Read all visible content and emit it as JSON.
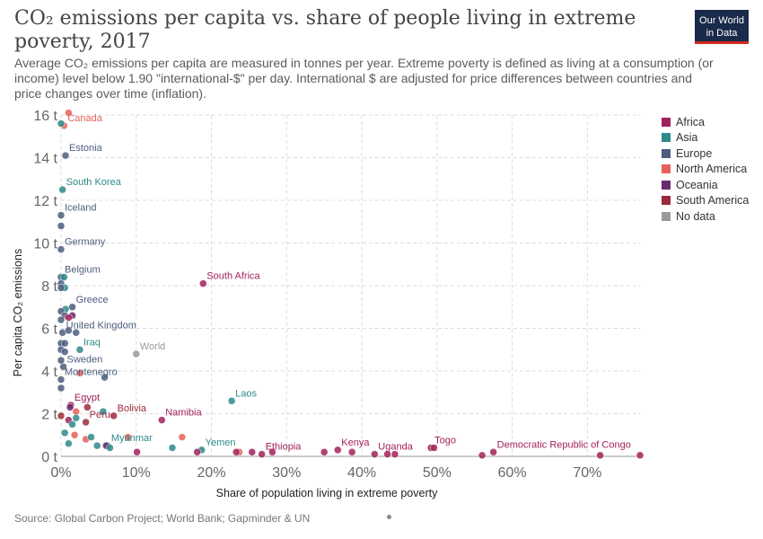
{
  "header": {
    "title": "CO₂ emissions per capita vs. share of people living in extreme poverty, 2017",
    "subtitle": "Average CO₂  emissions per capita are measured in tonnes per year. Extreme poverty is defined as living at a consumption (or income) level below 1.90 \"international-$\" per day. International $ are adjusted for price differences between countries and price changes over time (inflation).",
    "logo_line1": "Our World",
    "logo_line2": "in Data"
  },
  "footer": {
    "source": "Source: Global Carbon Project; World Bank; Gapminder & UN"
  },
  "colors": {
    "Africa": "#a2225b",
    "Asia": "#2e8a8a",
    "Europe": "#4c5d7e",
    "North America": "#e5605a",
    "Oceania": "#6a2a6e",
    "South America": "#9b2a3c",
    "No data": "#9a9a9a"
  },
  "chart_data": {
    "type": "scatter",
    "xlabel": "Share of population living in extreme poverty",
    "ylabel": "Per capita CO₂ emissions",
    "xlim": [
      0,
      77
    ],
    "ylim": [
      0,
      16
    ],
    "x_ticks": [
      "0%",
      "10%",
      "20%",
      "30%",
      "40%",
      "50%",
      "60%",
      "70%"
    ],
    "x_tick_values": [
      0,
      10,
      20,
      30,
      40,
      50,
      60,
      70
    ],
    "y_ticks": [
      "0 t",
      "2 t",
      "4 t",
      "6 t",
      "8 t",
      "10 t",
      "12 t",
      "14 t",
      "16 t"
    ],
    "y_tick_values": [
      0,
      2,
      4,
      6,
      8,
      10,
      12,
      14,
      16
    ],
    "grid": true,
    "legend_position": "right",
    "legend": [
      "Africa",
      "Asia",
      "Europe",
      "North America",
      "Oceania",
      "South America",
      "No data"
    ],
    "points": [
      {
        "label": "Canada",
        "region": "North America",
        "x": 0.4,
        "y": 15.5
      },
      {
        "label": "",
        "region": "North America",
        "x": 1.0,
        "y": 16.1
      },
      {
        "label": "",
        "region": "Asia",
        "x": 0.0,
        "y": 15.6
      },
      {
        "label": "Estonia",
        "region": "Europe",
        "x": 0.6,
        "y": 14.1
      },
      {
        "label": "South Korea",
        "region": "Asia",
        "x": 0.2,
        "y": 12.5
      },
      {
        "label": "Iceland",
        "region": "Europe",
        "x": 0.0,
        "y": 11.3
      },
      {
        "label": "",
        "region": "Europe",
        "x": 0.0,
        "y": 10.8
      },
      {
        "label": "Germany",
        "region": "Europe",
        "x": 0.0,
        "y": 9.7
      },
      {
        "label": "Belgium",
        "region": "Europe",
        "x": 0.0,
        "y": 8.4
      },
      {
        "label": "",
        "region": "Asia",
        "x": 0.4,
        "y": 8.4
      },
      {
        "label": "",
        "region": "Europe",
        "x": 0.0,
        "y": 8.1
      },
      {
        "label": "",
        "region": "Asia",
        "x": 0.5,
        "y": 7.9
      },
      {
        "label": "",
        "region": "Europe",
        "x": 0.0,
        "y": 7.9
      },
      {
        "label": "South Africa",
        "region": "Africa",
        "x": 18.9,
        "y": 8.1
      },
      {
        "label": "Greece",
        "region": "Europe",
        "x": 1.5,
        "y": 7.0
      },
      {
        "label": "",
        "region": "Asia",
        "x": 0.6,
        "y": 6.9
      },
      {
        "label": "",
        "region": "Europe",
        "x": 0.0,
        "y": 6.8
      },
      {
        "label": "",
        "region": "Europe",
        "x": 0.5,
        "y": 6.6
      },
      {
        "label": "",
        "region": "Oceania",
        "x": 1.5,
        "y": 6.6
      },
      {
        "label": "",
        "region": "Africa",
        "x": 1.0,
        "y": 6.5
      },
      {
        "label": "",
        "region": "Europe",
        "x": 0.0,
        "y": 6.4
      },
      {
        "label": "United Kingdom",
        "region": "Europe",
        "x": 0.2,
        "y": 5.8
      },
      {
        "label": "",
        "region": "Europe",
        "x": 1.0,
        "y": 5.9
      },
      {
        "label": "",
        "region": "Europe",
        "x": 2.0,
        "y": 5.8
      },
      {
        "label": "",
        "region": "Europe",
        "x": 0.0,
        "y": 5.3
      },
      {
        "label": "",
        "region": "Europe",
        "x": 0.5,
        "y": 5.3
      },
      {
        "label": "Iraq",
        "region": "Asia",
        "x": 2.5,
        "y": 5.0
      },
      {
        "label": "",
        "region": "Europe",
        "x": 0.0,
        "y": 5.0
      },
      {
        "label": "",
        "region": "Europe",
        "x": 0.5,
        "y": 4.9
      },
      {
        "label": "World",
        "region": "No data",
        "x": 10.0,
        "y": 4.8
      },
      {
        "label": "Sweden",
        "region": "Europe",
        "x": 0.3,
        "y": 4.2
      },
      {
        "label": "",
        "region": "Europe",
        "x": 0.0,
        "y": 4.5
      },
      {
        "label": "",
        "region": "North America",
        "x": 2.5,
        "y": 3.9
      },
      {
        "label": "",
        "region": "Europe",
        "x": 5.8,
        "y": 3.7
      },
      {
        "label": "Montenegro",
        "region": "Europe",
        "x": 0.0,
        "y": 3.6
      },
      {
        "label": "",
        "region": "Europe",
        "x": 0.0,
        "y": 3.2
      },
      {
        "label": "Laos",
        "region": "Asia",
        "x": 22.7,
        "y": 2.6
      },
      {
        "label": "Egypt",
        "region": "Africa",
        "x": 1.3,
        "y": 2.4
      },
      {
        "label": "",
        "region": "Oceania",
        "x": 1.2,
        "y": 2.3
      },
      {
        "label": "",
        "region": "South America",
        "x": 3.5,
        "y": 2.3
      },
      {
        "label": "",
        "region": "North America",
        "x": 2.0,
        "y": 2.1
      },
      {
        "label": "Bolivia",
        "region": "South America",
        "x": 7.0,
        "y": 1.9
      },
      {
        "label": "",
        "region": "Asia",
        "x": 5.6,
        "y": 2.1
      },
      {
        "label": "Namibia",
        "region": "Africa",
        "x": 13.4,
        "y": 1.7
      },
      {
        "label": "Peru",
        "region": "South America",
        "x": 3.3,
        "y": 1.6
      },
      {
        "label": "",
        "region": "South America",
        "x": 0.0,
        "y": 1.9
      },
      {
        "label": "",
        "region": "Africa",
        "x": 1.0,
        "y": 1.7
      },
      {
        "label": "",
        "region": "Asia",
        "x": 2.0,
        "y": 1.8
      },
      {
        "label": "",
        "region": "Asia",
        "x": 1.5,
        "y": 1.5
      },
      {
        "label": "",
        "region": "Asia",
        "x": 0.5,
        "y": 1.1
      },
      {
        "label": "",
        "region": "North America",
        "x": 1.8,
        "y": 1.0
      },
      {
        "label": "",
        "region": "North America",
        "x": 3.3,
        "y": 0.8
      },
      {
        "label": "",
        "region": "Asia",
        "x": 4.0,
        "y": 0.9
      },
      {
        "label": "",
        "region": "North America",
        "x": 8.9,
        "y": 0.9
      },
      {
        "label": "",
        "region": "North America",
        "x": 16.1,
        "y": 0.9
      },
      {
        "label": "Myanmar",
        "region": "Asia",
        "x": 6.2,
        "y": 0.5
      },
      {
        "label": "",
        "region": "Asia",
        "x": 4.8,
        "y": 0.5
      },
      {
        "label": "",
        "region": "Oceania",
        "x": 6.0,
        "y": 0.5
      },
      {
        "label": "",
        "region": "Asia",
        "x": 6.5,
        "y": 0.4
      },
      {
        "label": "",
        "region": "Asia",
        "x": 1.0,
        "y": 0.6
      },
      {
        "label": "",
        "region": "Africa",
        "x": 10.1,
        "y": 0.2
      },
      {
        "label": "",
        "region": "Asia",
        "x": 14.8,
        "y": 0.4
      },
      {
        "label": "Yemen",
        "region": "Asia",
        "x": 18.7,
        "y": 0.3
      },
      {
        "label": "",
        "region": "Africa",
        "x": 18.1,
        "y": 0.2
      },
      {
        "label": "",
        "region": "North America",
        "x": 23.7,
        "y": 0.2
      },
      {
        "label": "",
        "region": "Africa",
        "x": 23.3,
        "y": 0.2
      },
      {
        "label": "",
        "region": "Africa",
        "x": 25.4,
        "y": 0.2
      },
      {
        "label": "Ethiopia",
        "region": "Africa",
        "x": 26.7,
        "y": 0.1
      },
      {
        "label": "",
        "region": "Africa",
        "x": 28.1,
        "y": 0.2
      },
      {
        "label": "",
        "region": "Africa",
        "x": 35.0,
        "y": 0.2
      },
      {
        "label": "Kenya",
        "region": "Africa",
        "x": 36.8,
        "y": 0.3
      },
      {
        "label": "",
        "region": "Africa",
        "x": 38.7,
        "y": 0.2
      },
      {
        "label": "Uganda",
        "region": "Africa",
        "x": 41.7,
        "y": 0.1
      },
      {
        "label": "",
        "region": "Africa",
        "x": 43.4,
        "y": 0.1
      },
      {
        "label": "",
        "region": "Africa",
        "x": 44.4,
        "y": 0.1
      },
      {
        "label": "Togo",
        "region": "Africa",
        "x": 49.2,
        "y": 0.4
      },
      {
        "label": "",
        "region": "Africa",
        "x": 49.6,
        "y": 0.4
      },
      {
        "label": "",
        "region": "Africa",
        "x": 56.0,
        "y": 0.05
      },
      {
        "label": "Democratic Republic of Congo",
        "region": "Africa",
        "x": 57.5,
        "y": 0.2
      },
      {
        "label": "",
        "region": "Africa",
        "x": 71.7,
        "y": 0.05
      },
      {
        "label": "",
        "region": "Africa",
        "x": 77.0,
        "y": 0.05
      }
    ]
  }
}
